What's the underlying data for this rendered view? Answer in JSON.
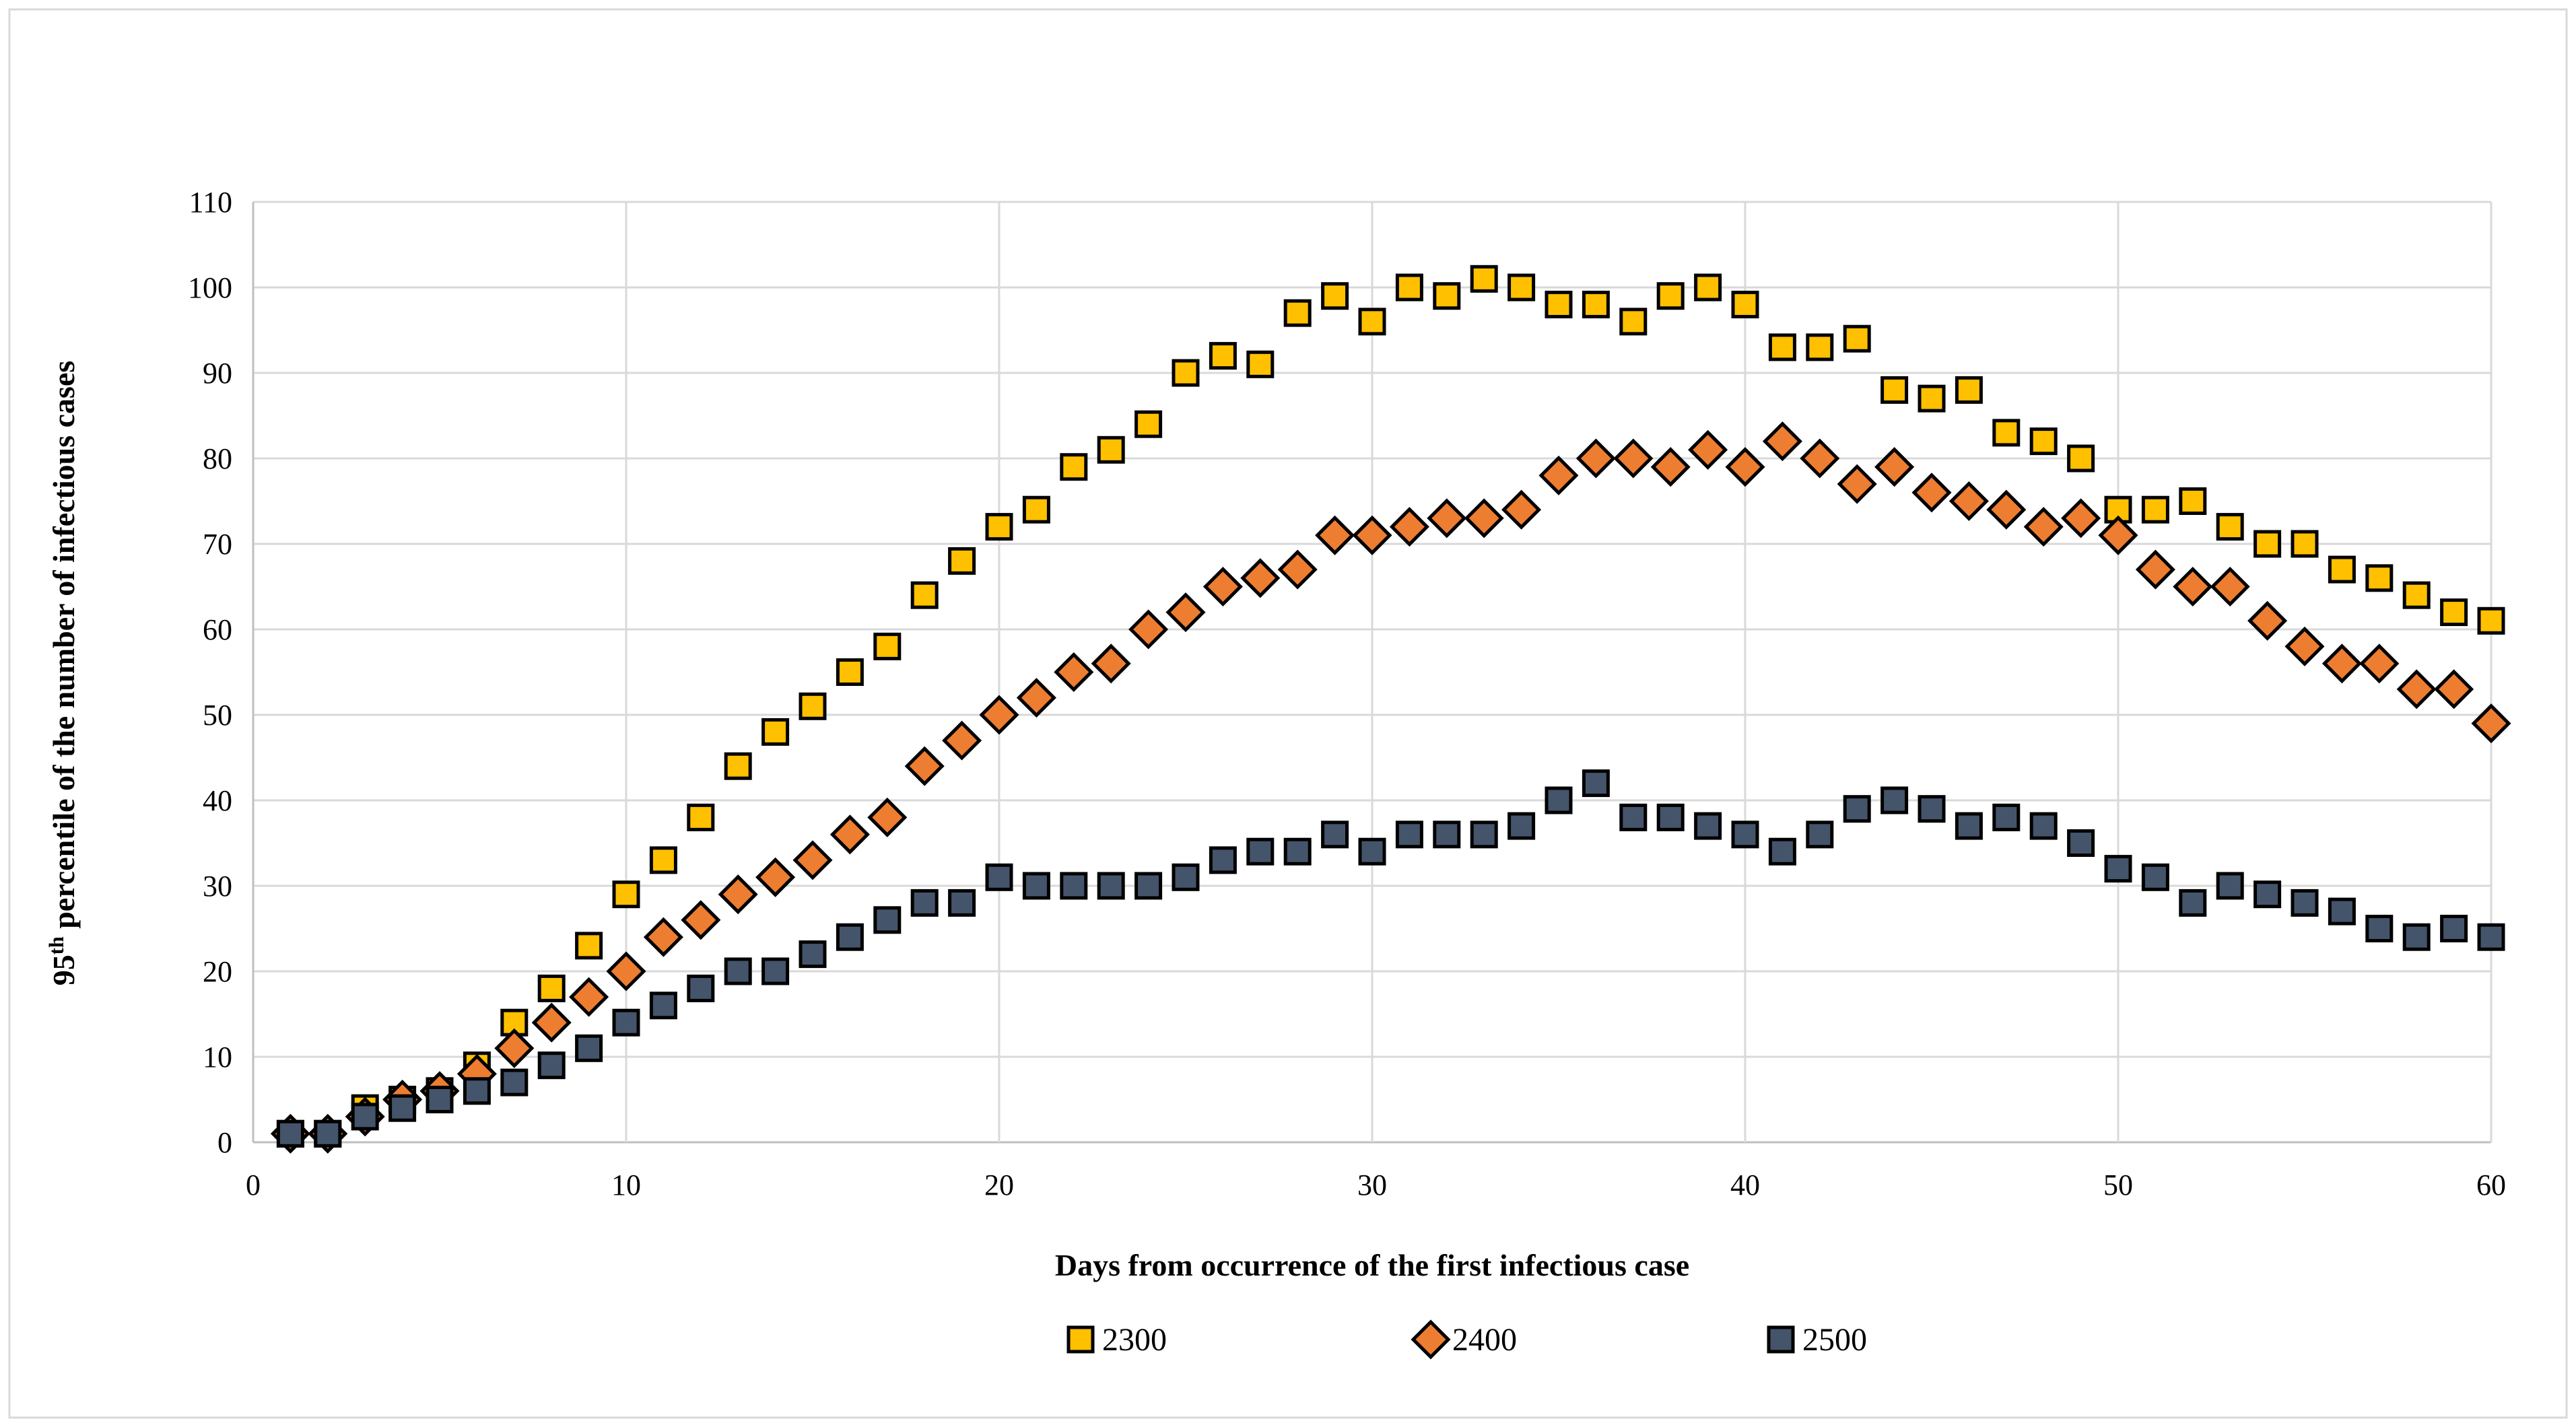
{
  "figure": {
    "background": "#ffffff",
    "border_color": "#d9d9d9",
    "gridline_color": "#d9d9d9",
    "axisline_color": "#bfbfbf",
    "text_color": "#000000"
  },
  "y_axis": {
    "title_parts": {
      "pre": "95",
      "sup": "th",
      "rest": " percentile of the number of infectious cases"
    },
    "ticks": [
      0,
      10,
      20,
      30,
      40,
      50,
      60,
      70,
      80,
      90,
      100,
      110
    ],
    "min": 0,
    "max": 110
  },
  "x_axis": {
    "title": "Days from occurrence of the first infectious case",
    "ticks": [
      0,
      10,
      20,
      30,
      40,
      50,
      60
    ],
    "min": 0,
    "max": 60
  },
  "legend": {
    "position": "bottom",
    "items": [
      {
        "label": "2300",
        "shape": "square",
        "fill": "#FFC000",
        "stroke": "#000000"
      },
      {
        "label": "2400",
        "shape": "diamond",
        "fill": "#ED7D31",
        "stroke": "#000000"
      },
      {
        "label": "2500",
        "shape": "square",
        "fill": "#44546A",
        "stroke": "#000000"
      }
    ]
  },
  "chart_data": {
    "type": "scatter",
    "title": "",
    "xlabel": "Days from occurrence of the first infectious case",
    "ylabel": "95th percentile of the number of infectious cases",
    "xlim": [
      0,
      60
    ],
    "ylim": [
      0,
      110
    ],
    "grid": true,
    "legend_position": "bottom",
    "days": [
      1,
      2,
      3,
      4,
      5,
      6,
      7,
      8,
      9,
      10,
      11,
      12,
      13,
      14,
      15,
      16,
      17,
      18,
      19,
      20,
      21,
      22,
      23,
      24,
      25,
      26,
      27,
      28,
      29,
      30,
      31,
      32,
      33,
      34,
      35,
      36,
      37,
      38,
      39,
      40,
      41,
      42,
      43,
      44,
      45,
      46,
      47,
      48,
      49,
      50,
      51,
      52,
      53,
      54,
      55,
      56,
      57,
      58,
      59,
      60
    ],
    "series": [
      {
        "name": "2300",
        "shape": "square",
        "fill": "#FFC000",
        "stroke": "#000000",
        "values": [
          1,
          1,
          4,
          5,
          6,
          9,
          14,
          18,
          23,
          29,
          33,
          38,
          44,
          48,
          51,
          55,
          58,
          64,
          68,
          72,
          74,
          79,
          81,
          84,
          90,
          92,
          91,
          97,
          99,
          96,
          100,
          99,
          101,
          100,
          98,
          98,
          96,
          99,
          100,
          98,
          93,
          93,
          94,
          88,
          87,
          88,
          83,
          82,
          80,
          74,
          74,
          75,
          72,
          70,
          70,
          67,
          66,
          64,
          62,
          61
        ]
      },
      {
        "name": "2400",
        "shape": "diamond",
        "fill": "#ED7D31",
        "stroke": "#000000",
        "values": [
          1,
          1,
          3,
          5,
          6,
          8,
          11,
          14,
          17,
          20,
          24,
          26,
          29,
          31,
          33,
          36,
          38,
          44,
          47,
          50,
          52,
          55,
          56,
          60,
          62,
          65,
          66,
          67,
          71,
          71,
          72,
          73,
          73,
          74,
          78,
          80,
          80,
          79,
          81,
          79,
          82,
          80,
          77,
          79,
          76,
          75,
          74,
          72,
          73,
          71,
          67,
          65,
          65,
          61,
          58,
          56,
          56,
          53,
          53,
          49
        ]
      },
      {
        "name": "2500",
        "shape": "square",
        "fill": "#44546A",
        "stroke": "#000000",
        "values": [
          1,
          1,
          3,
          4,
          5,
          6,
          7,
          9,
          11,
          14,
          16,
          18,
          20,
          20,
          22,
          24,
          26,
          28,
          28,
          31,
          30,
          30,
          30,
          30,
          31,
          33,
          34,
          34,
          36,
          34,
          36,
          36,
          36,
          37,
          40,
          42,
          38,
          38,
          37,
          36,
          34,
          36,
          39,
          40,
          39,
          37,
          38,
          37,
          35,
          32,
          31,
          28,
          30,
          29,
          28,
          27,
          25,
          24,
          25,
          24
        ]
      }
    ]
  }
}
